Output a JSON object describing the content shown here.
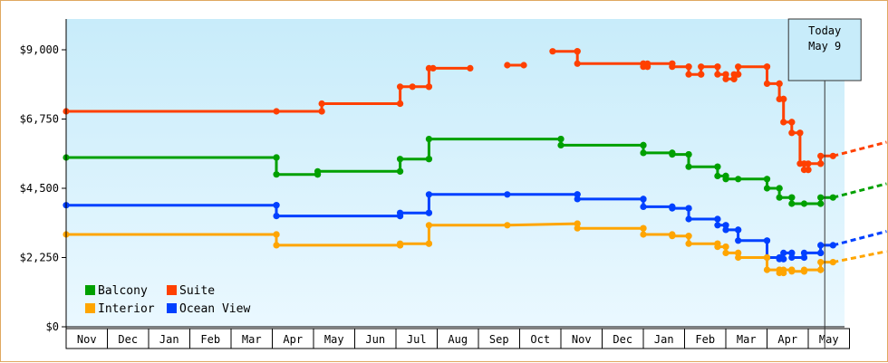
{
  "chart_data": {
    "type": "line",
    "ylim": [
      0,
      10000
    ],
    "y_ticks": [
      {
        "value": 0,
        "label": "$0"
      },
      {
        "value": 2250,
        "label": "$2,250"
      },
      {
        "value": 4500,
        "label": "$4,500"
      },
      {
        "value": 6750,
        "label": "$6,750"
      },
      {
        "value": 9000,
        "label": "$9,000"
      }
    ],
    "x_range": [
      -0.5,
      18.1
    ],
    "months": [
      "Nov",
      "Dec",
      "Jan",
      "Feb",
      "Mar",
      "Apr",
      "May",
      "Jun",
      "Jul",
      "Aug",
      "Sep",
      "Oct",
      "Nov",
      "Dec",
      "Jan",
      "Feb",
      "Mar",
      "Apr",
      "May"
    ],
    "today": {
      "label_line1": "Today",
      "label_line2": "May 9",
      "x": 17.9
    },
    "legend_position": "bottom-left",
    "series": [
      {
        "name": "Suite",
        "color": "#ff4000",
        "points": [
          [
            -0.5,
            7000
          ],
          [
            4.6,
            7000
          ],
          [
            5.7,
            7000
          ],
          [
            5.7,
            7250
          ],
          [
            7.6,
            7250
          ],
          [
            7.6,
            7800
          ],
          [
            7.9,
            7800
          ],
          [
            8.3,
            7800
          ],
          [
            8.3,
            8400
          ],
          [
            8.4,
            8400
          ],
          [
            9.3,
            8400
          ]
        ],
        "segments": [
          [
            [
              10.2,
              8500
            ],
            [
              10.6,
              8500
            ]
          ],
          [
            [
              11.3,
              8950
            ],
            [
              11.9,
              8950
            ],
            [
              11.9,
              8550
            ],
            [
              13.5,
              8550
            ],
            [
              13.5,
              8450
            ],
            [
              13.6,
              8450
            ],
            [
              13.6,
              8550
            ],
            [
              14.2,
              8550
            ],
            [
              14.2,
              8450
            ],
            [
              14.6,
              8450
            ],
            [
              14.6,
              8200
            ],
            [
              14.9,
              8200
            ],
            [
              14.9,
              8450
            ],
            [
              15.3,
              8450
            ],
            [
              15.3,
              8200
            ],
            [
              15.5,
              8200
            ],
            [
              15.5,
              8050
            ],
            [
              15.7,
              8050
            ],
            [
              15.7,
              8200
            ],
            [
              15.8,
              8200
            ],
            [
              15.8,
              8450
            ],
            [
              16.5,
              8450
            ],
            [
              16.5,
              7900
            ],
            [
              16.8,
              7900
            ],
            [
              16.8,
              7400
            ],
            [
              16.9,
              7400
            ],
            [
              16.9,
              6650
            ],
            [
              17.1,
              6650
            ],
            [
              17.1,
              6300
            ],
            [
              17.3,
              6300
            ],
            [
              17.3,
              5300
            ],
            [
              17.4,
              5300
            ],
            [
              17.4,
              5100
            ],
            [
              17.5,
              5100
            ],
            [
              17.5,
              5300
            ],
            [
              17.8,
              5300
            ],
            [
              17.8,
              5550
            ],
            [
              18.1,
              5550
            ]
          ]
        ],
        "projection": [
          [
            18.1,
            5550
          ],
          [
            19.4,
            6000
          ]
        ]
      },
      {
        "name": "Balcony",
        "color": "#00a000",
        "points": [
          [
            -0.5,
            5500
          ],
          [
            4.6,
            5500
          ],
          [
            4.6,
            4950
          ],
          [
            5.6,
            4950
          ],
          [
            5.6,
            5050
          ],
          [
            7.6,
            5050
          ],
          [
            7.6,
            5450
          ],
          [
            8.3,
            5450
          ],
          [
            8.3,
            6100
          ],
          [
            11.5,
            6100
          ],
          [
            11.5,
            5900
          ],
          [
            13.5,
            5900
          ],
          [
            13.5,
            5650
          ],
          [
            14.2,
            5650
          ],
          [
            14.2,
            5600
          ],
          [
            14.6,
            5600
          ],
          [
            14.6,
            5200
          ],
          [
            15.3,
            5200
          ],
          [
            15.3,
            4900
          ],
          [
            15.5,
            4900
          ],
          [
            15.5,
            4800
          ],
          [
            15.8,
            4800
          ],
          [
            16.5,
            4800
          ],
          [
            16.5,
            4500
          ],
          [
            16.8,
            4500
          ],
          [
            16.8,
            4200
          ],
          [
            17.1,
            4200
          ],
          [
            17.1,
            4000
          ],
          [
            17.4,
            4000
          ],
          [
            17.8,
            4000
          ],
          [
            17.8,
            4200
          ],
          [
            18.1,
            4200
          ]
        ],
        "projection": [
          [
            18.1,
            4200
          ],
          [
            19.4,
            4650
          ]
        ]
      },
      {
        "name": "Ocean View",
        "color": "#0040ff",
        "points": [
          [
            -0.5,
            3950
          ],
          [
            4.6,
            3950
          ],
          [
            4.6,
            3600
          ],
          [
            7.6,
            3600
          ],
          [
            7.6,
            3700
          ],
          [
            8.3,
            3700
          ],
          [
            8.3,
            4300
          ],
          [
            10.2,
            4300
          ],
          [
            11.9,
            4300
          ],
          [
            11.9,
            4150
          ],
          [
            13.5,
            4150
          ],
          [
            13.5,
            3900
          ],
          [
            14.2,
            3900
          ],
          [
            14.2,
            3850
          ],
          [
            14.6,
            3850
          ],
          [
            14.6,
            3500
          ],
          [
            15.3,
            3500
          ],
          [
            15.3,
            3300
          ],
          [
            15.5,
            3300
          ],
          [
            15.5,
            3150
          ],
          [
            15.8,
            3150
          ],
          [
            15.8,
            2800
          ],
          [
            16.5,
            2800
          ],
          [
            16.5,
            2250
          ],
          [
            16.8,
            2250
          ],
          [
            16.8,
            2200
          ],
          [
            16.9,
            2200
          ],
          [
            16.9,
            2400
          ],
          [
            17.1,
            2400
          ],
          [
            17.1,
            2250
          ],
          [
            17.4,
            2250
          ],
          [
            17.4,
            2400
          ],
          [
            17.8,
            2400
          ],
          [
            17.8,
            2650
          ],
          [
            18.1,
            2650
          ]
        ],
        "projection": [
          [
            18.1,
            2650
          ],
          [
            19.4,
            3100
          ]
        ]
      },
      {
        "name": "Interior",
        "color": "#ffa500",
        "points": [
          [
            -0.5,
            3000
          ],
          [
            4.6,
            3000
          ],
          [
            4.6,
            2650
          ],
          [
            7.6,
            2650
          ],
          [
            7.6,
            2700
          ],
          [
            8.3,
            2700
          ],
          [
            8.3,
            3300
          ],
          [
            10.2,
            3300
          ],
          [
            11.9,
            3350
          ],
          [
            11.9,
            3200
          ],
          [
            13.5,
            3200
          ],
          [
            13.5,
            3000
          ],
          [
            14.2,
            3000
          ],
          [
            14.2,
            2950
          ],
          [
            14.6,
            2950
          ],
          [
            14.6,
            2700
          ],
          [
            15.3,
            2700
          ],
          [
            15.3,
            2600
          ],
          [
            15.5,
            2600
          ],
          [
            15.5,
            2400
          ],
          [
            15.8,
            2400
          ],
          [
            15.8,
            2250
          ],
          [
            16.5,
            2250
          ],
          [
            16.5,
            1850
          ],
          [
            16.8,
            1850
          ],
          [
            16.8,
            1750
          ],
          [
            16.9,
            1750
          ],
          [
            16.9,
            1850
          ],
          [
            17.1,
            1850
          ],
          [
            17.1,
            1800
          ],
          [
            17.4,
            1800
          ],
          [
            17.4,
            1850
          ],
          [
            17.8,
            1850
          ],
          [
            17.8,
            2100
          ],
          [
            18.1,
            2100
          ]
        ],
        "projection": [
          [
            18.1,
            2100
          ],
          [
            19.4,
            2450
          ]
        ]
      }
    ]
  }
}
